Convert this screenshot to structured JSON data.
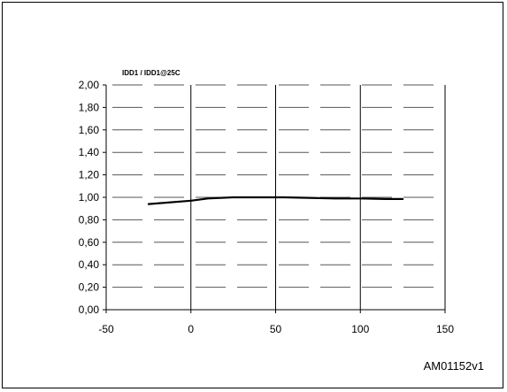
{
  "chart_data": {
    "type": "line",
    "title": "IDD1 / IDD1@25C",
    "xlabel": "",
    "ylabel": "",
    "xlim": [
      -50,
      150
    ],
    "ylim": [
      0,
      2
    ],
    "x_ticks": [
      -50,
      0,
      50,
      100,
      150
    ],
    "x_tick_labels": [
      "-50",
      "0",
      "50",
      "100",
      "150"
    ],
    "y_ticks": [
      0,
      0.2,
      0.4,
      0.6,
      0.8,
      1.0,
      1.2,
      1.4,
      1.6,
      1.8,
      2.0
    ],
    "y_tick_labels": [
      "0,00",
      "0,20",
      "0,40",
      "0,60",
      "0,80",
      "1,00",
      "1,20",
      "1,40",
      "1,60",
      "1,80",
      "2,00"
    ],
    "grid": "solid vertical lines at x ticks, dashed horizontal lines at y ticks",
    "legend": "none",
    "series": [
      {
        "color": "#000000",
        "x": [
          -25,
          0,
          10,
          25,
          40,
          55,
          70,
          85,
          100,
          115,
          125
        ],
        "y": [
          0.94,
          0.97,
          0.99,
          1.0,
          1.0,
          1.0,
          0.995,
          0.99,
          0.99,
          0.985,
          0.985
        ]
      }
    ]
  },
  "footer": {
    "reference": "AM01152v1"
  }
}
